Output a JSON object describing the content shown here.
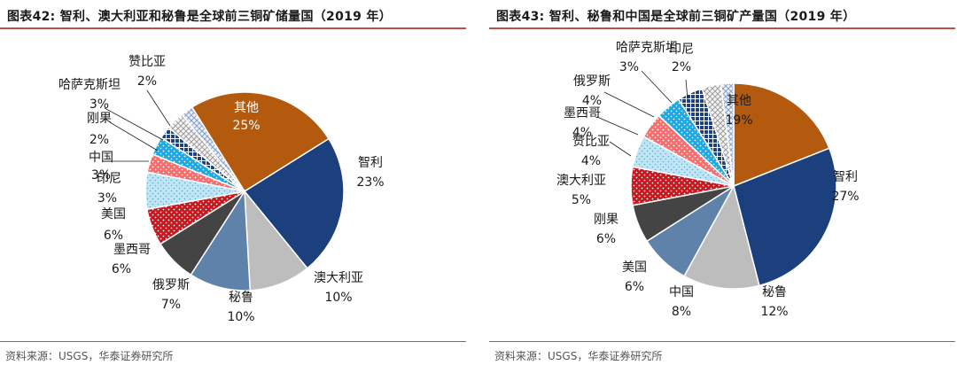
{
  "colors": {
    "accent_rule": "#c0504d"
  },
  "panels": [
    {
      "title": "图表42:  智利、澳大利亚和秘鲁是全球前三铜矿储量国（2019 年）",
      "source": "资料来源：USGS，华泰证券研究所",
      "chart_data": {
        "type": "pie",
        "title": "",
        "start_angle_deg": 328,
        "direction": "clockwise",
        "slices": [
          {
            "label": "其他",
            "value": 25,
            "value_label": "25%",
            "color": "#b35a0f",
            "pattern": "solid",
            "label_inside": true
          },
          {
            "label": "智利",
            "value": 23,
            "value_label": "23%",
            "color": "#1c3f7d",
            "pattern": "solid"
          },
          {
            "label": "澳大利亚",
            "value": 10,
            "value_label": "10%",
            "color": "#bdbdbd",
            "pattern": "solid"
          },
          {
            "label": "秘鲁",
            "value": 10,
            "value_label": "10%",
            "color": "#5f82ab",
            "pattern": "solid"
          },
          {
            "label": "俄罗斯",
            "value": 7,
            "value_label": "7%",
            "color": "#444444",
            "pattern": "solid"
          },
          {
            "label": "墨西哥",
            "value": 6,
            "value_label": "6%",
            "color": "#c01a20",
            "pattern": "dots-white"
          },
          {
            "label": "美国",
            "value": 6,
            "value_label": "6%",
            "color": "#bfe6f5",
            "pattern": "dots-blue"
          },
          {
            "label": "印尼",
            "value": 3,
            "value_label": "3%",
            "color": "#f36f6f",
            "pattern": "dots-white"
          },
          {
            "label": "中国",
            "value": 3,
            "value_label": "3%",
            "color": "#1fa8e0",
            "pattern": "dots-white"
          },
          {
            "label": "刚果",
            "value": 2,
            "value_label": "2%",
            "color": "#1c3f7d",
            "pattern": "cross-white"
          },
          {
            "label": "哈萨克斯坦",
            "value": 3,
            "value_label": "3%",
            "color": "#cccccc",
            "pattern": "hatch-light"
          },
          {
            "label": "赞比亚",
            "value": 2,
            "value_label": "2%",
            "color": "#8aa3cc",
            "pattern": "grid-light"
          }
        ]
      }
    },
    {
      "title": "图表43:  智利、秘鲁和中国是全球前三铜矿产量国（2019 年）",
      "source": "资料来源：USGS，华泰证券研究所",
      "chart_data": {
        "type": "pie",
        "title": "",
        "start_angle_deg": 0,
        "direction": "clockwise",
        "slices": [
          {
            "label": "其他",
            "value": 19,
            "value_label": "19%",
            "color": "#b35a0f",
            "pattern": "solid",
            "label_inside": true
          },
          {
            "label": "智利",
            "value": 27,
            "value_label": "27%",
            "color": "#1c3f7d",
            "pattern": "solid"
          },
          {
            "label": "秘鲁",
            "value": 12,
            "value_label": "12%",
            "color": "#bdbdbd",
            "pattern": "solid"
          },
          {
            "label": "中国",
            "value": 8,
            "value_label": "8%",
            "color": "#5f82ab",
            "pattern": "solid"
          },
          {
            "label": "美国",
            "value": 6,
            "value_label": "6%",
            "color": "#444444",
            "pattern": "solid"
          },
          {
            "label": "刚果",
            "value": 6,
            "value_label": "6%",
            "color": "#c01a20",
            "pattern": "dots-white"
          },
          {
            "label": "澳大利亚",
            "value": 5,
            "value_label": "5%",
            "color": "#bfe6f5",
            "pattern": "dots-blue"
          },
          {
            "label": "赞比亚",
            "value": 4,
            "value_label": "4%",
            "color": "#f36f6f",
            "pattern": "dots-white"
          },
          {
            "label": "墨西哥",
            "value": 4,
            "value_label": "4%",
            "color": "#1fa8e0",
            "pattern": "dots-white"
          },
          {
            "label": "俄罗斯",
            "value": 4,
            "value_label": "4%",
            "color": "#1c3f7d",
            "pattern": "cross-white"
          },
          {
            "label": "哈萨克斯坦",
            "value": 3,
            "value_label": "3%",
            "color": "#cccccc",
            "pattern": "hatch-light"
          },
          {
            "label": "印尼",
            "value": 2,
            "value_label": "2%",
            "color": "#8aa3cc",
            "pattern": "grid-light"
          }
        ]
      }
    }
  ]
}
